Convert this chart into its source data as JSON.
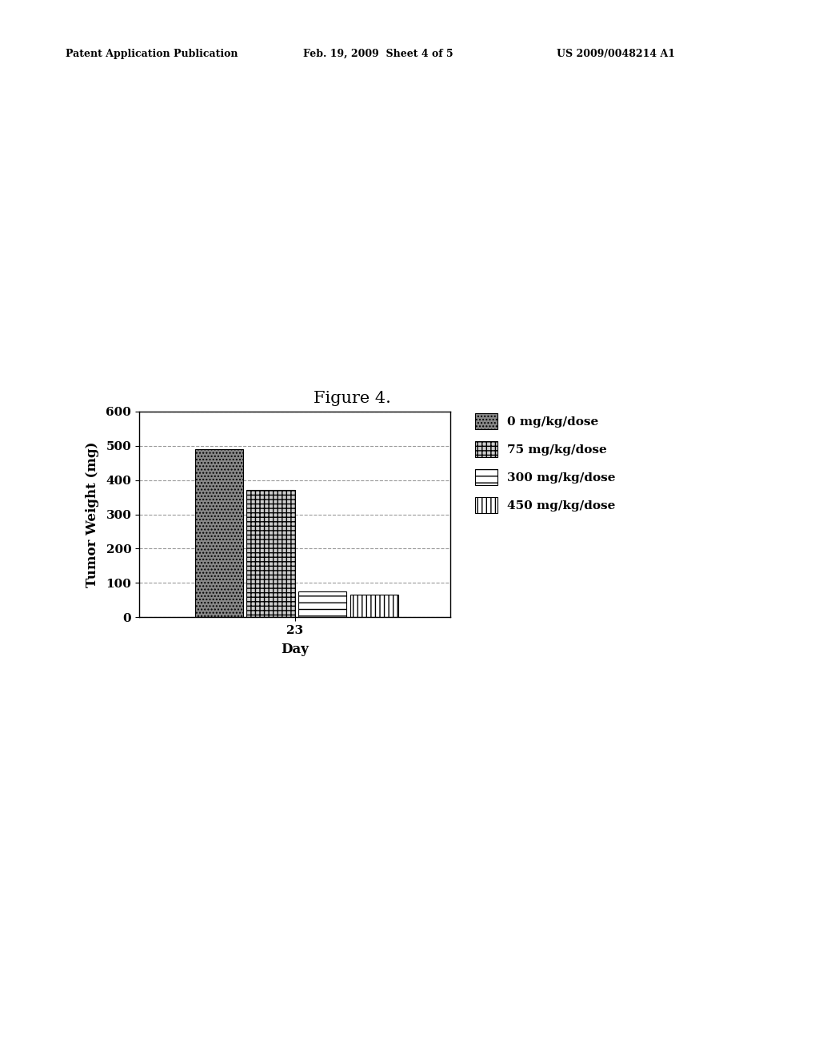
{
  "title": "Figure 4.",
  "xlabel": "Day",
  "ylabel": "Tumor Weight (mg)",
  "x_tick_label": "23",
  "ylim": [
    0,
    600
  ],
  "yticks": [
    0,
    100,
    200,
    300,
    400,
    500,
    600
  ],
  "bar_values": [
    490,
    370,
    75,
    65
  ],
  "bar_labels": [
    "0 mg/kg/dose",
    "75 mg/kg/dose",
    "300 mg/kg/dose",
    "450 mg/kg/dose"
  ],
  "background_color": "#ffffff",
  "header_left": "Patent Application Publication",
  "header_mid": "Feb. 19, 2009  Sheet 4 of 5",
  "header_right": "US 2009/0048214 A1",
  "header_fontsize": 9,
  "title_fontsize": 15,
  "axis_label_fontsize": 12,
  "tick_fontsize": 11,
  "legend_fontsize": 11
}
